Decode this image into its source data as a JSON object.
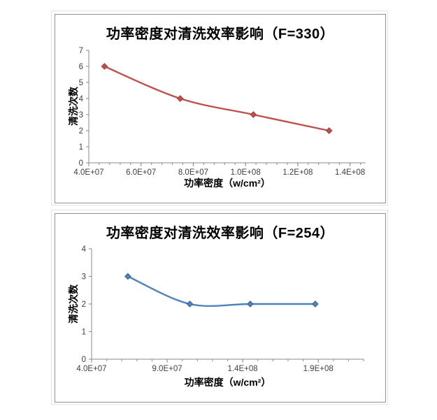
{
  "colors": {
    "background": "#ffffff",
    "panel_border": "#919191",
    "panel_outer_border": "#e4e4e4",
    "axis_line": "#8a8a8a",
    "tick_label": "#3f3f3f",
    "title_text": "#000000",
    "series_red": "#C0504D",
    "series_red_edge": "#8E3A38",
    "series_blue": "#4F81BD",
    "series_blue_edge": "#38598C"
  },
  "chart_data": [
    {
      "type": "line",
      "title": "功率密度对清洗效率影响（F=330）",
      "xlabel": "功率密度（w/cm²）",
      "ylabel": "清洗次数",
      "smooth": true,
      "marker": "diamond",
      "grid": false,
      "legend": "none",
      "series": [
        {
          "name": "清洗次数",
          "color": "#C0504D",
          "marker_edge": "#8E3A38",
          "x": [
            46000000,
            75000000,
            103000000,
            132000000
          ],
          "y": [
            6,
            4,
            3,
            2
          ]
        }
      ],
      "x_axis": {
        "min": 40000000,
        "max": 146000000,
        "major_step": 20000000,
        "minor_step": 4000000,
        "tick_labels": [
          "4.0E+07",
          "6.0E+07",
          "8.0E+07",
          "1.0E+08",
          "1.2E+08",
          "1.4E+08"
        ]
      },
      "y_axis": {
        "min": 0,
        "max": 7,
        "step": 1,
        "tick_labels": [
          "0",
          "1",
          "2",
          "3",
          "4",
          "5",
          "6",
          "7"
        ]
      }
    },
    {
      "type": "line",
      "title": "功率密度对清洗效率影响（F=254）",
      "xlabel": "功率密度（w/cm²）",
      "ylabel": "清洗次数",
      "smooth": true,
      "marker": "diamond",
      "grid": false,
      "legend": "none",
      "series": [
        {
          "name": "清洗次数",
          "color": "#4F81BD",
          "marker_edge": "#38598C",
          "x": [
            64000000,
            105000000,
            145000000,
            188000000
          ],
          "y": [
            3,
            2,
            2,
            2
          ]
        }
      ],
      "x_axis": {
        "min": 40000000,
        "max": 220000000,
        "major_step": 50000000,
        "minor_step": 10000000,
        "tick_labels": [
          "4.0E+07",
          "9.0E+07",
          "1.4E+08",
          "1.9E+08"
        ]
      },
      "y_axis": {
        "min": 0,
        "max": 4,
        "step": 1,
        "tick_labels": [
          "0",
          "1",
          "2",
          "3",
          "4"
        ]
      }
    }
  ]
}
